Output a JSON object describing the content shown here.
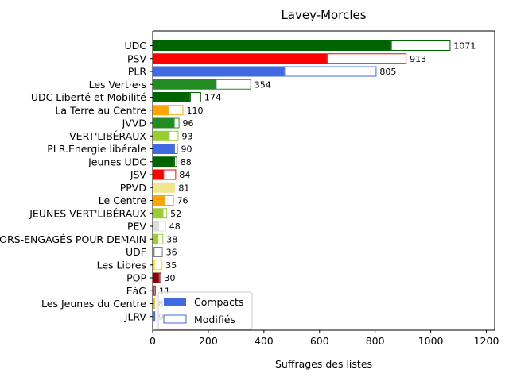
{
  "chart_data": {
    "type": "bar",
    "orientation": "horizontal",
    "stacked": true,
    "title": "Lavey-Morcles",
    "xlabel": "Suffrages des listes",
    "ylabel": "",
    "xlim": [
      0,
      1230
    ],
    "xticks": [
      0,
      200,
      400,
      600,
      800,
      1000,
      1200
    ],
    "grid": false,
    "legend": {
      "position": "lower-left",
      "entries": [
        "Compacts",
        "Modifiés"
      ]
    },
    "series": [
      {
        "name": "Compacts",
        "style": "filled"
      },
      {
        "name": "Modifiés",
        "style": "outlined"
      }
    ],
    "bars": [
      {
        "category": "UDC",
        "color": "#006400",
        "compacts": 857,
        "modifies": 214,
        "total": 1071
      },
      {
        "category": "PSV",
        "color": "#ff0000",
        "compacts": 626,
        "modifies": 287,
        "total": 913
      },
      {
        "category": "PLR",
        "color": "#4169e1",
        "compacts": 473,
        "modifies": 332,
        "total": 805
      },
      {
        "category": "Les Vert·e·s",
        "color": "#228b22",
        "compacts": 227,
        "modifies": 127,
        "total": 354
      },
      {
        "category": "UDC Liberté et Mobilité",
        "color": "#006400",
        "compacts": 134,
        "modifies": 40,
        "total": 174
      },
      {
        "category": "La Terre au Centre",
        "color": "#ffa500",
        "compacts": 57,
        "modifies": 53,
        "total": 110
      },
      {
        "category": "JVVD",
        "color": "#228b22",
        "compacts": 76,
        "modifies": 20,
        "total": 96
      },
      {
        "category": "VERT'LIBÉRAUX",
        "color": "#9acd32",
        "compacts": 58,
        "modifies": 35,
        "total": 93
      },
      {
        "category": "PLR.Énergie libérale",
        "color": "#4169e1",
        "compacts": 77,
        "modifies": 13,
        "total": 90
      },
      {
        "category": "Jeunes UDC",
        "color": "#006400",
        "compacts": 77,
        "modifies": 11,
        "total": 88
      },
      {
        "category": "JSV",
        "color": "#ff0000",
        "compacts": 38,
        "modifies": 46,
        "total": 84
      },
      {
        "category": "PPVD",
        "color": "#f0e68c",
        "compacts": 78,
        "modifies": 3,
        "total": 81
      },
      {
        "category": "Le Centre",
        "color": "#ffa500",
        "compacts": 40,
        "modifies": 36,
        "total": 76
      },
      {
        "category": "JEUNES VERT'LIBÉRAUX",
        "color": "#9acd32",
        "compacts": 36,
        "modifies": 16,
        "total": 52
      },
      {
        "category": "PEV",
        "color": "#dcdcdc",
        "compacts": 20,
        "modifies": 28,
        "total": 48
      },
      {
        "category": "SENIORS-ENGAGÉS POUR DEMAIN",
        "color": "#9acd32",
        "compacts": 18,
        "modifies": 20,
        "total": 38
      },
      {
        "category": "UDF",
        "color": "#808080",
        "compacts": 4,
        "modifies": 32,
        "total": 36
      },
      {
        "category": "Les Libres",
        "color": "#ffd700",
        "compacts": 5,
        "modifies": 30,
        "total": 35
      },
      {
        "category": "POP",
        "color": "#8b0000",
        "compacts": 22,
        "modifies": 8,
        "total": 30
      },
      {
        "category": "EàG",
        "color": "#b22222",
        "compacts": 4,
        "modifies": 7,
        "total": 11
      },
      {
        "category": "Les Jeunes du Centre",
        "color": "#ffa500",
        "compacts": 3,
        "modifies": 5,
        "total": 8
      },
      {
        "category": "JLRV",
        "color": "#4169e1",
        "compacts": 5,
        "modifies": 4,
        "total": 9
      }
    ]
  }
}
